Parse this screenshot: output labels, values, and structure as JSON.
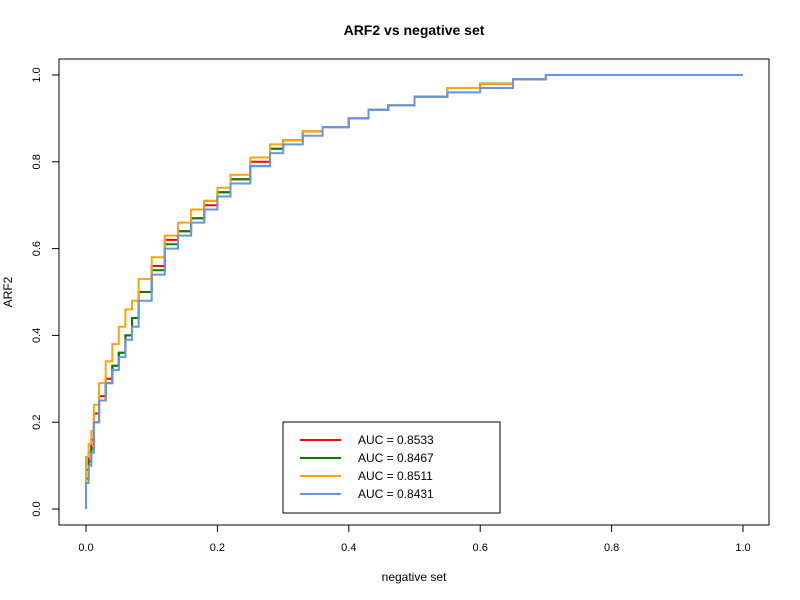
{
  "chart_data": {
    "type": "line",
    "title": "ARF2 vs negative set",
    "xlabel": "negative set",
    "ylabel": "ARF2",
    "xlim": [
      0,
      1
    ],
    "ylim": [
      0,
      1
    ],
    "x_ticks": [
      "0.0",
      "0.2",
      "0.4",
      "0.6",
      "0.8",
      "1.0"
    ],
    "y_ticks": [
      "0.0",
      "0.2",
      "0.4",
      "0.6",
      "0.8",
      "1.0"
    ],
    "grid": false,
    "legend_position": "bottom-center",
    "series": [
      {
        "name": "AUC = 0.8533",
        "color": "#ff0000",
        "points": [
          [
            0.0,
            0.0
          ],
          [
            0.004,
            0.09
          ],
          [
            0.008,
            0.13
          ],
          [
            0.012,
            0.16
          ],
          [
            0.02,
            0.22
          ],
          [
            0.03,
            0.26
          ],
          [
            0.04,
            0.3
          ],
          [
            0.05,
            0.33
          ],
          [
            0.06,
            0.36
          ],
          [
            0.07,
            0.4
          ],
          [
            0.08,
            0.44
          ],
          [
            0.1,
            0.5
          ],
          [
            0.12,
            0.56
          ],
          [
            0.14,
            0.62
          ],
          [
            0.16,
            0.64
          ],
          [
            0.18,
            0.67
          ],
          [
            0.2,
            0.7
          ],
          [
            0.22,
            0.73
          ],
          [
            0.25,
            0.76
          ],
          [
            0.28,
            0.8
          ],
          [
            0.3,
            0.83
          ],
          [
            0.33,
            0.85
          ],
          [
            0.36,
            0.87
          ],
          [
            0.4,
            0.88
          ],
          [
            0.43,
            0.9
          ],
          [
            0.46,
            0.92
          ],
          [
            0.5,
            0.93
          ],
          [
            0.55,
            0.95
          ],
          [
            0.6,
            0.97
          ],
          [
            0.65,
            0.98
          ],
          [
            0.7,
            0.99
          ],
          [
            0.76,
            1.0
          ],
          [
            1.0,
            1.0
          ]
        ]
      },
      {
        "name": "AUC = 0.8467",
        "color": "#008000",
        "points": [
          [
            0.0,
            0.0
          ],
          [
            0.004,
            0.07
          ],
          [
            0.008,
            0.11
          ],
          [
            0.012,
            0.14
          ],
          [
            0.02,
            0.2
          ],
          [
            0.03,
            0.25
          ],
          [
            0.04,
            0.29
          ],
          [
            0.05,
            0.33
          ],
          [
            0.06,
            0.36
          ],
          [
            0.07,
            0.4
          ],
          [
            0.08,
            0.44
          ],
          [
            0.1,
            0.5
          ],
          [
            0.12,
            0.55
          ],
          [
            0.14,
            0.61
          ],
          [
            0.16,
            0.64
          ],
          [
            0.18,
            0.67
          ],
          [
            0.2,
            0.71
          ],
          [
            0.22,
            0.73
          ],
          [
            0.25,
            0.76
          ],
          [
            0.28,
            0.79
          ],
          [
            0.3,
            0.83
          ],
          [
            0.33,
            0.85
          ],
          [
            0.36,
            0.87
          ],
          [
            0.4,
            0.88
          ],
          [
            0.43,
            0.9
          ],
          [
            0.46,
            0.92
          ],
          [
            0.5,
            0.93
          ],
          [
            0.55,
            0.95
          ],
          [
            0.6,
            0.97
          ],
          [
            0.65,
            0.98
          ],
          [
            0.7,
            0.99
          ],
          [
            0.76,
            1.0
          ],
          [
            1.0,
            1.0
          ]
        ]
      },
      {
        "name": "AUC = 0.8511",
        "color": "#ffa500",
        "points": [
          [
            0.0,
            0.0
          ],
          [
            0.004,
            0.12
          ],
          [
            0.008,
            0.15
          ],
          [
            0.012,
            0.18
          ],
          [
            0.02,
            0.24
          ],
          [
            0.03,
            0.29
          ],
          [
            0.04,
            0.34
          ],
          [
            0.05,
            0.38
          ],
          [
            0.06,
            0.42
          ],
          [
            0.07,
            0.46
          ],
          [
            0.08,
            0.48
          ],
          [
            0.1,
            0.53
          ],
          [
            0.12,
            0.58
          ],
          [
            0.14,
            0.63
          ],
          [
            0.16,
            0.66
          ],
          [
            0.18,
            0.69
          ],
          [
            0.2,
            0.71
          ],
          [
            0.22,
            0.74
          ],
          [
            0.25,
            0.77
          ],
          [
            0.28,
            0.81
          ],
          [
            0.3,
            0.84
          ],
          [
            0.33,
            0.85
          ],
          [
            0.36,
            0.87
          ],
          [
            0.4,
            0.88
          ],
          [
            0.43,
            0.9
          ],
          [
            0.46,
            0.92
          ],
          [
            0.5,
            0.93
          ],
          [
            0.55,
            0.95
          ],
          [
            0.6,
            0.97
          ],
          [
            0.65,
            0.98
          ],
          [
            0.7,
            0.99
          ],
          [
            0.76,
            1.0
          ],
          [
            1.0,
            1.0
          ]
        ]
      },
      {
        "name": "AUC = 0.8431",
        "color": "#6495ed",
        "points": [
          [
            0.0,
            0.0
          ],
          [
            0.004,
            0.06
          ],
          [
            0.008,
            0.1
          ],
          [
            0.012,
            0.13
          ],
          [
            0.02,
            0.2
          ],
          [
            0.03,
            0.25
          ],
          [
            0.04,
            0.29
          ],
          [
            0.05,
            0.32
          ],
          [
            0.06,
            0.35
          ],
          [
            0.07,
            0.39
          ],
          [
            0.08,
            0.42
          ],
          [
            0.1,
            0.48
          ],
          [
            0.12,
            0.54
          ],
          [
            0.14,
            0.6
          ],
          [
            0.16,
            0.63
          ],
          [
            0.18,
            0.66
          ],
          [
            0.2,
            0.69
          ],
          [
            0.22,
            0.72
          ],
          [
            0.25,
            0.75
          ],
          [
            0.28,
            0.79
          ],
          [
            0.3,
            0.82
          ],
          [
            0.33,
            0.84
          ],
          [
            0.36,
            0.86
          ],
          [
            0.4,
            0.88
          ],
          [
            0.43,
            0.9
          ],
          [
            0.46,
            0.92
          ],
          [
            0.5,
            0.93
          ],
          [
            0.55,
            0.95
          ],
          [
            0.6,
            0.96
          ],
          [
            0.65,
            0.97
          ],
          [
            0.7,
            0.99
          ],
          [
            0.77,
            1.0
          ],
          [
            1.0,
            1.0
          ]
        ]
      }
    ]
  }
}
